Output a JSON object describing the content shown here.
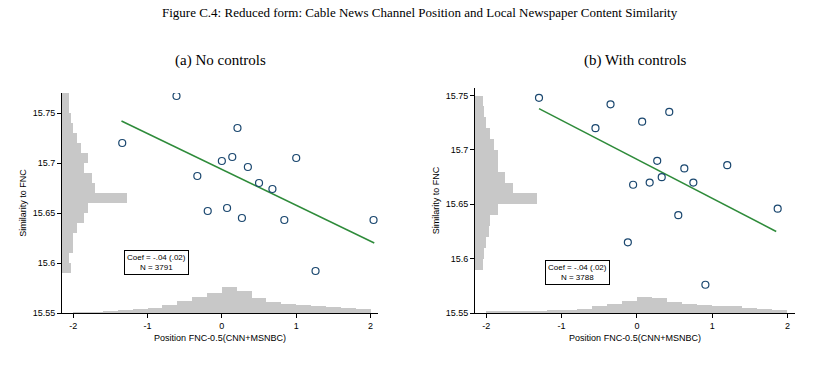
{
  "figure_title": "Figure C.4: Reduced form: Cable News Channel Position and Local Newspaper Content Similarity",
  "chart_data": [
    {
      "type": "scatter",
      "title": "(a) No controls",
      "x_label": "Position FNC-0.5(CNN+MSNBC)",
      "y_label": "Similarity to FNC",
      "x": [
        -1.34,
        -0.61,
        -0.33,
        -0.19,
        0.0,
        0.07,
        0.14,
        0.21,
        0.27,
        0.35,
        0.5,
        0.68,
        0.84,
        1.0,
        1.26,
        2.04
      ],
      "y": [
        15.72,
        15.767,
        15.687,
        15.652,
        15.702,
        15.655,
        15.706,
        15.735,
        15.645,
        15.696,
        15.68,
        15.674,
        15.643,
        15.705,
        15.592,
        15.643
      ],
      "color": "#1a476f",
      "marker": "circle-open",
      "fit": {
        "x": [
          -1.35,
          2.05
        ],
        "y": [
          15.742,
          15.62
        ],
        "color": "#2e8b3a"
      },
      "annotation": [
        "Coef = -.04 (.02)",
        "N = 3791"
      ],
      "x_hist": {
        "bins": [
          -2.0,
          -1.8,
          -1.6,
          -1.4,
          -1.2,
          -1.0,
          -0.8,
          -0.6,
          -0.4,
          -0.2,
          0.0,
          0.2,
          0.4,
          0.6,
          0.8,
          1.0,
          1.2,
          1.4,
          1.6,
          1.8,
          2.0
        ],
        "values": [
          0.001,
          0.001,
          0.002,
          0.003,
          0.004,
          0.005,
          0.008,
          0.012,
          0.016,
          0.02,
          0.026,
          0.022,
          0.015,
          0.011,
          0.009,
          0.008,
          0.007,
          0.006,
          0.005,
          0.004
        ],
        "color": "#c8c8c8"
      },
      "y_hist": {
        "bins": [
          15.59,
          15.6,
          15.61,
          15.62,
          15.63,
          15.64,
          15.65,
          15.66,
          15.67,
          15.68,
          15.69,
          15.7,
          15.71,
          15.72,
          15.73,
          15.74,
          15.75,
          15.76,
          15.77
        ],
        "values": [
          0.12,
          0.1,
          0.15,
          0.15,
          0.2,
          0.3,
          0.35,
          0.87,
          0.45,
          0.4,
          0.3,
          0.35,
          0.25,
          0.2,
          0.15,
          0.12,
          0.1,
          0.1
        ],
        "color": "#c8c8c8"
      },
      "xlim": [
        -2.15,
        2.1
      ],
      "xticks": [
        -2,
        -1,
        0,
        1,
        2
      ],
      "ylim": [
        15.55,
        15.77
      ],
      "yticks": [
        15.55,
        15.6,
        15.65,
        15.7,
        15.75
      ],
      "grid": false
    },
    {
      "type": "scatter",
      "title": "(b) With controls",
      "x_label": "Position FNC-0.5(CNN+MSNBC)",
      "y_label": "Similarity to FNC",
      "x": [
        -1.3,
        -0.55,
        -0.35,
        -0.12,
        -0.05,
        0.07,
        0.17,
        0.27,
        0.33,
        0.43,
        0.55,
        0.63,
        0.75,
        0.91,
        1.2,
        1.87
      ],
      "y": [
        15.748,
        15.72,
        15.742,
        15.615,
        15.668,
        15.726,
        15.67,
        15.69,
        15.675,
        15.735,
        15.64,
        15.683,
        15.67,
        15.576,
        15.686,
        15.646
      ],
      "color": "#1a476f",
      "marker": "circle-open",
      "fit": {
        "x": [
          -1.3,
          1.85
        ],
        "y": [
          15.738,
          15.625
        ],
        "color": "#2e8b3a"
      },
      "annotation": [
        "Coef = -.04 (.02)",
        "N = 3788"
      ],
      "x_hist": {
        "bins": [
          -2.0,
          -1.8,
          -1.6,
          -1.4,
          -1.2,
          -1.0,
          -0.8,
          -0.6,
          -0.4,
          -0.2,
          0.0,
          0.2,
          0.4,
          0.6,
          0.8,
          1.0,
          1.2,
          1.4,
          1.6,
          1.8,
          2.0
        ],
        "values": [
          0.001,
          0.001,
          0.001,
          0.002,
          0.003,
          0.003,
          0.004,
          0.006,
          0.008,
          0.011,
          0.015,
          0.014,
          0.01,
          0.008,
          0.007,
          0.006,
          0.006,
          0.005,
          0.004,
          0.003
        ],
        "color": "#c8c8c8"
      },
      "y_hist": {
        "bins": [
          15.59,
          15.6,
          15.61,
          15.62,
          15.63,
          15.64,
          15.65,
          15.66,
          15.67,
          15.68,
          15.69,
          15.7,
          15.71,
          15.72,
          15.73,
          15.74,
          15.75
        ],
        "values": [
          0.1,
          0.12,
          0.15,
          0.18,
          0.2,
          0.3,
          0.83,
          0.5,
          0.4,
          0.3,
          0.3,
          0.25,
          0.2,
          0.15,
          0.12,
          0.1
        ],
        "color": "#c8c8c8"
      },
      "xlim": [
        -2.15,
        2.1
      ],
      "xticks": [
        -2,
        -1,
        0,
        1,
        2
      ],
      "ylim": [
        15.55,
        15.757
      ],
      "yticks": [
        15.55,
        15.6,
        15.65,
        15.7,
        15.75
      ],
      "grid": false
    }
  ]
}
